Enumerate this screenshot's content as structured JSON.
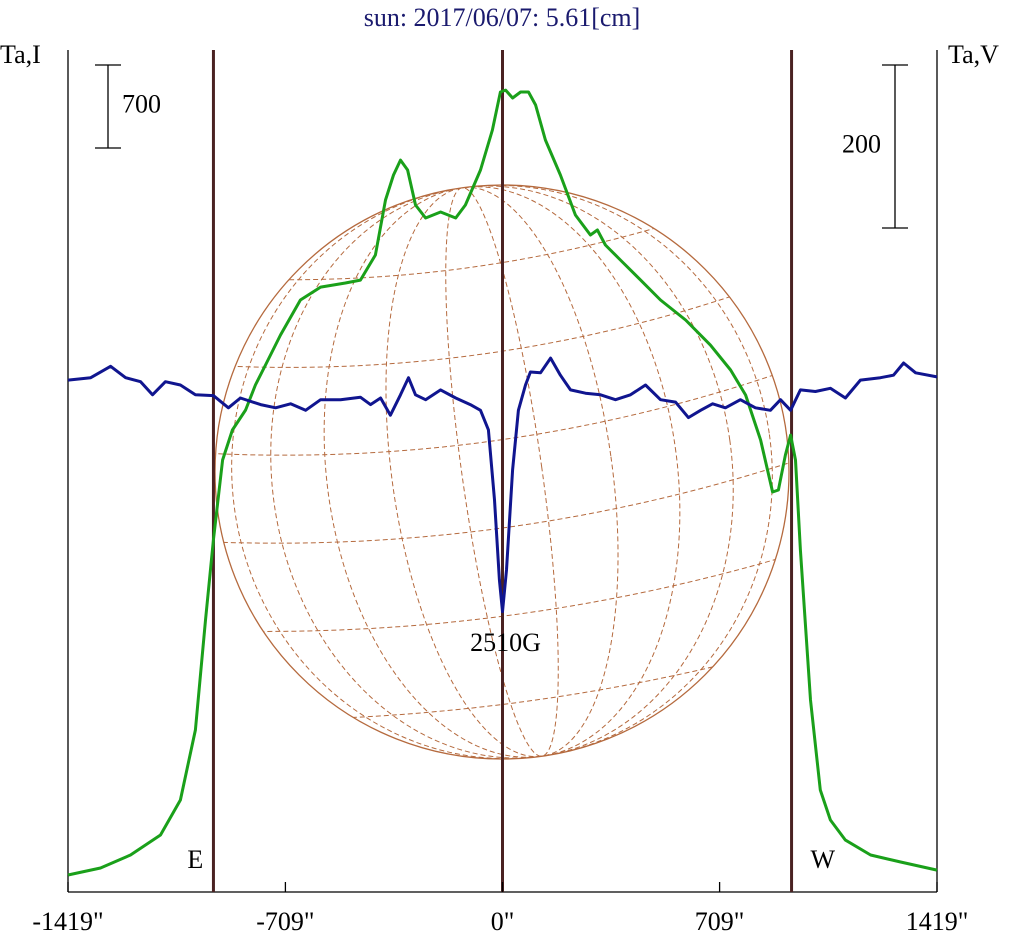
{
  "chart_data": {
    "type": "line",
    "title": "sun: 2017/06/07: 5.61[cm]",
    "ylabel": "Ta,I",
    "y2label": "Ta,V",
    "xlim": [
      -1419,
      1419
    ],
    "xticks": [
      {
        "value": -1419,
        "label": "-1419\""
      },
      {
        "value": -709,
        "label": "-709\""
      },
      {
        "value": 0,
        "label": "0\""
      },
      {
        "value": 709,
        "label": "709\""
      },
      {
        "value": 1419,
        "label": "1419\""
      }
    ],
    "ylim": [
      0,
      7100
    ],
    "y2lim": [
      -630,
      403
    ],
    "vlines": [
      -944,
      0,
      944
    ],
    "scale_bars": [
      {
        "value": 700,
        "axis": "y"
      },
      {
        "value": 200,
        "axis": "y2"
      }
    ],
    "annotations": [
      {
        "text": "E",
        "x": -1003
      },
      {
        "text": "W",
        "x": 1046
      },
      {
        "text": "2510G",
        "x": 10
      }
    ],
    "series": [
      {
        "name": "I",
        "color": "#1aa01a",
        "axis": "y",
        "x": [
          -1419,
          -1313,
          -1215,
          -1117,
          -1052,
          -1003,
          -970,
          -944,
          -914,
          -882,
          -839,
          -807,
          -774,
          -725,
          -660,
          -594,
          -513,
          -464,
          -415,
          -382,
          -356,
          -333,
          -310,
          -284,
          -251,
          -202,
          -153,
          -121,
          -72,
          -33,
          -7,
          10,
          33,
          59,
          85,
          108,
          140,
          189,
          238,
          287,
          310,
          336,
          385,
          451,
          516,
          598,
          679,
          745,
          794,
          843,
          882,
          901,
          924,
          941,
          957,
          973,
          1006,
          1038,
          1071,
          1120,
          1202,
          1300,
          1419
        ],
        "values": [
          143,
          202,
          312,
          481,
          776,
          1366,
          2293,
          2968,
          3643,
          3896,
          4064,
          4275,
          4444,
          4697,
          4992,
          5101,
          5135,
          5160,
          5371,
          5835,
          6046,
          6172,
          6088,
          5793,
          5683,
          5734,
          5683,
          5793,
          6088,
          6425,
          6746,
          6762,
          6695,
          6746,
          6746,
          6636,
          6341,
          6046,
          5709,
          5540,
          5582,
          5456,
          5329,
          5160,
          4992,
          4823,
          4612,
          4402,
          4191,
          3811,
          3373,
          3390,
          3685,
          3853,
          3643,
          2884,
          1619,
          860,
          607,
          438,
          312,
          253,
          185
        ]
      },
      {
        "name": "V",
        "color": "#10158f",
        "axis": "y2",
        "x": [
          -1419,
          -1345,
          -1280,
          -1231,
          -1182,
          -1143,
          -1101,
          -1052,
          -1003,
          -944,
          -895,
          -856,
          -790,
          -741,
          -692,
          -643,
          -594,
          -529,
          -464,
          -431,
          -398,
          -366,
          -333,
          -307,
          -284,
          -251,
          -202,
          -153,
          -105,
          -72,
          -46,
          -26,
          -10,
          0,
          13,
          33,
          52,
          75,
          91,
          124,
          157,
          189,
          222,
          271,
          320,
          369,
          418,
          467,
          516,
          565,
          607,
          647,
          686,
          728,
          777,
          826,
          875,
          908,
          941,
          973,
          1022,
          1071,
          1120,
          1169,
          1234,
          1277,
          1310,
          1349,
          1419
        ],
        "values": [
          -2,
          1,
          15,
          1,
          -4,
          -20,
          -4,
          -8,
          -20,
          -21,
          -36,
          -24,
          -32,
          -36,
          -31,
          -39,
          -26,
          -26,
          -23,
          -32,
          -24,
          -45,
          -20,
          1,
          -20,
          -26,
          -14,
          -24,
          -32,
          -39,
          -63,
          -149,
          -247,
          -286,
          -235,
          -112,
          -39,
          -8,
          8,
          7,
          25,
          4,
          -14,
          -18,
          -20,
          -26,
          -20,
          -8,
          -26,
          -29,
          -48,
          -39,
          -31,
          -36,
          -26,
          -36,
          -39,
          -26,
          -39,
          -14,
          -16,
          -12,
          -24,
          -2,
          1,
          4,
          19,
          7,
          2
        ]
      }
    ]
  }
}
